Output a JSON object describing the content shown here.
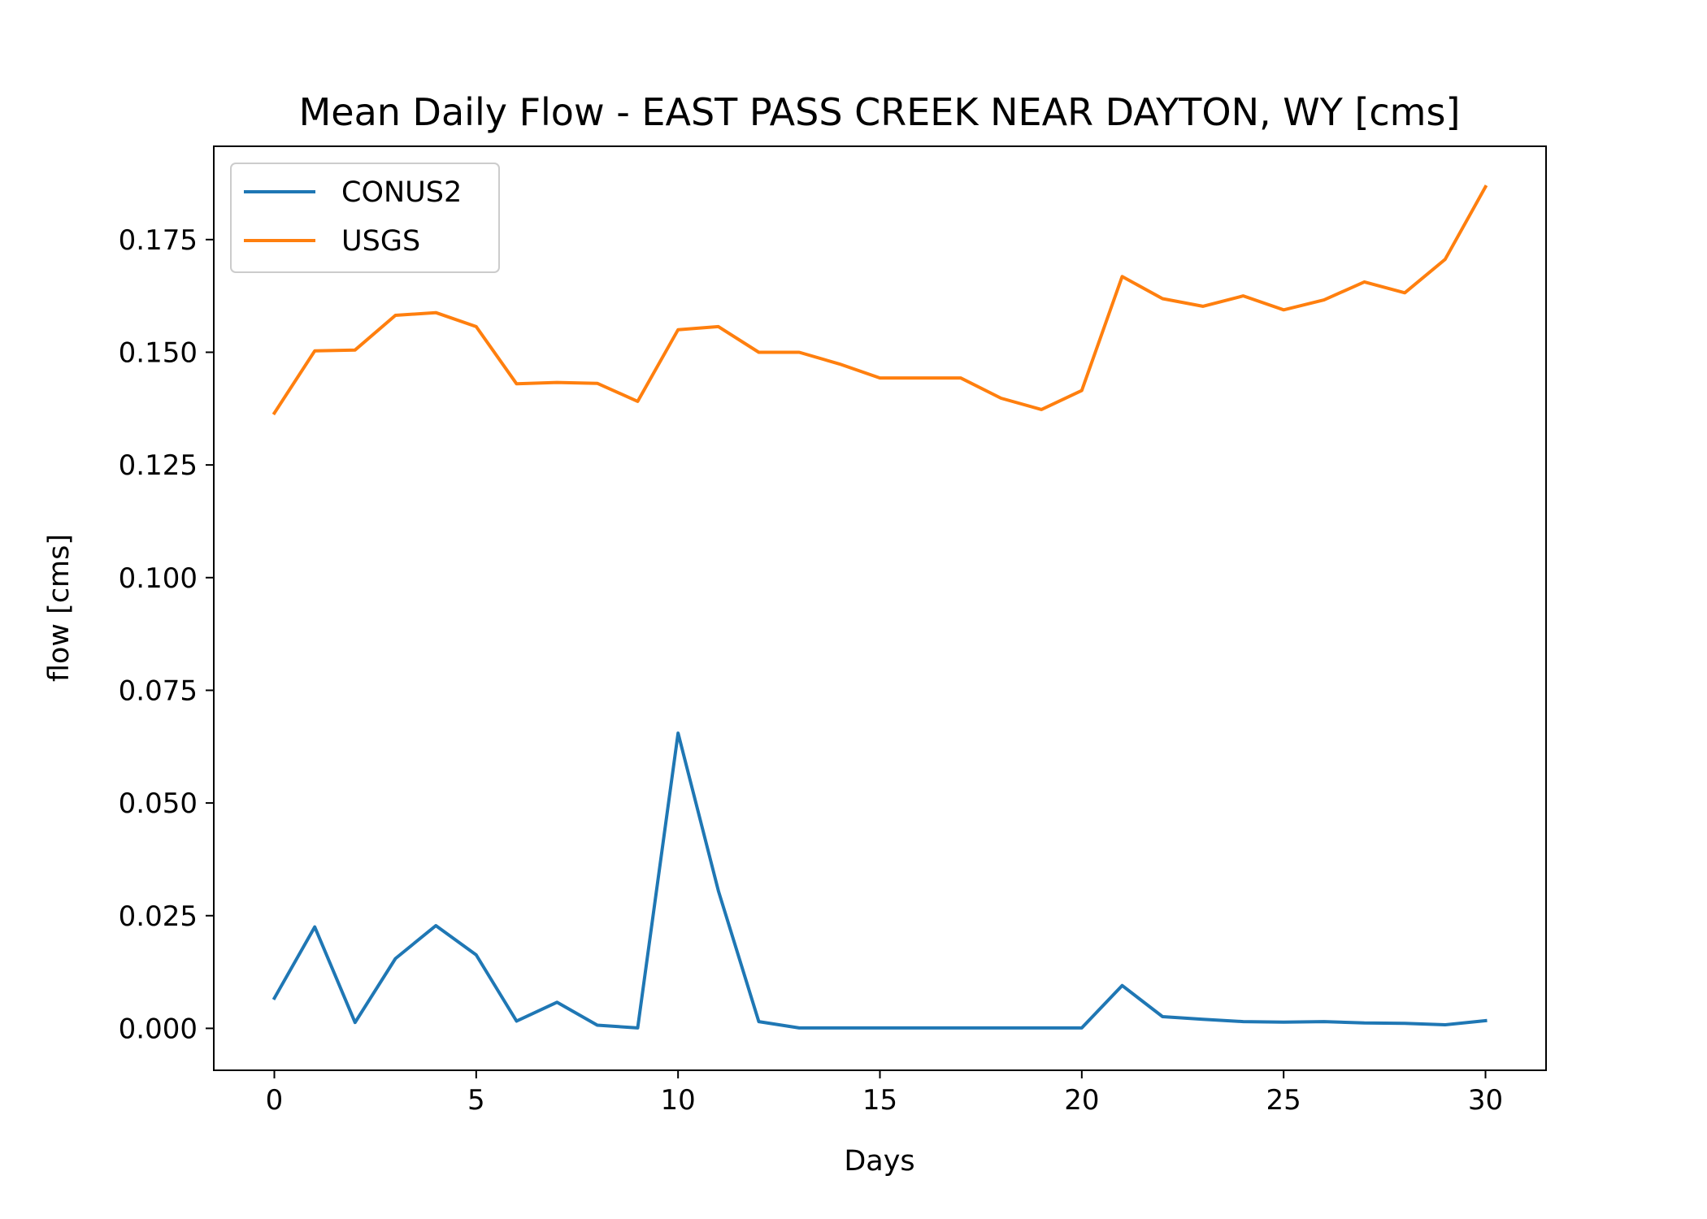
{
  "chart_data": {
    "type": "line",
    "title": "Mean Daily Flow - EAST PASS CREEK NEAR DAYTON, WY [cms]",
    "xlabel": "Days",
    "ylabel": "flow [cms]",
    "xlim": [
      -1.5,
      31.5
    ],
    "ylim": [
      -0.0093,
      0.1957
    ],
    "xticks": [
      0,
      5,
      10,
      15,
      20,
      25,
      30
    ],
    "xtick_labels": [
      "0",
      "5",
      "10",
      "15",
      "20",
      "25",
      "30"
    ],
    "yticks": [
      0.0,
      0.025,
      0.05,
      0.075,
      0.1,
      0.125,
      0.15,
      0.175
    ],
    "ytick_labels": [
      "0.000",
      "0.025",
      "0.050",
      "0.075",
      "0.100",
      "0.125",
      "0.150",
      "0.175"
    ],
    "grid": false,
    "legend_position": "top-left",
    "x": [
      0,
      1,
      2,
      3,
      4,
      5,
      6,
      7,
      8,
      9,
      10,
      11,
      12,
      13,
      14,
      15,
      16,
      17,
      18,
      19,
      20,
      21,
      22,
      23,
      24,
      25,
      26,
      27,
      28,
      29,
      30
    ],
    "series": [
      {
        "name": "CONUS2",
        "color": "#1f77b4",
        "values": [
          0.0067,
          0.0225,
          0.0013,
          0.0155,
          0.0228,
          0.0163,
          0.0016,
          0.0058,
          0.0007,
          0.0001,
          0.0655,
          0.0305,
          0.0015,
          0.0001,
          0.0001,
          0.0001,
          0.0001,
          0.0001,
          0.0001,
          0.0001,
          0.0001,
          0.0095,
          0.0026,
          0.002,
          0.0015,
          0.0014,
          0.0015,
          0.0012,
          0.0011,
          0.0008,
          0.0017
        ]
      },
      {
        "name": "USGS",
        "color": "#ff7f0e",
        "values": [
          0.1365,
          0.1503,
          0.1505,
          0.1582,
          0.1588,
          0.1557,
          0.143,
          0.1433,
          0.1431,
          0.1391,
          0.155,
          0.1557,
          0.15,
          0.15,
          0.1474,
          0.1443,
          0.1443,
          0.1443,
          0.1398,
          0.1373,
          0.1415,
          0.1668,
          0.1619,
          0.1602,
          0.1625,
          0.1594,
          0.1616,
          0.1656,
          0.1632,
          0.1706,
          0.1867
        ]
      }
    ]
  }
}
